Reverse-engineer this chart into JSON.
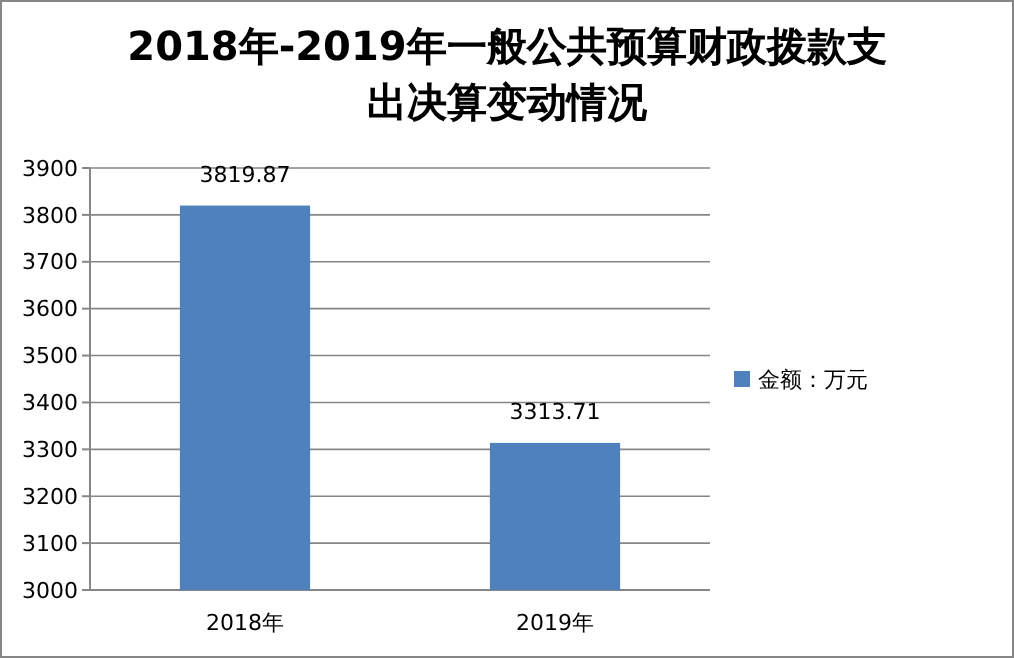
{
  "chart_data": {
    "type": "bar",
    "title": "2018年-2019年一般公共预算财政拨款支出决算变动情况",
    "categories": [
      "2018年",
      "2019年"
    ],
    "series": [
      {
        "name": "金额：万元",
        "color": "#4f81bd",
        "values": [
          3819.87,
          3313.71
        ]
      }
    ],
    "ylim": [
      3000,
      3900
    ],
    "yticks": [
      3000,
      3100,
      3200,
      3300,
      3400,
      3500,
      3600,
      3700,
      3800,
      3900
    ],
    "grid": "y",
    "legend": "right",
    "data_labels": true
  }
}
